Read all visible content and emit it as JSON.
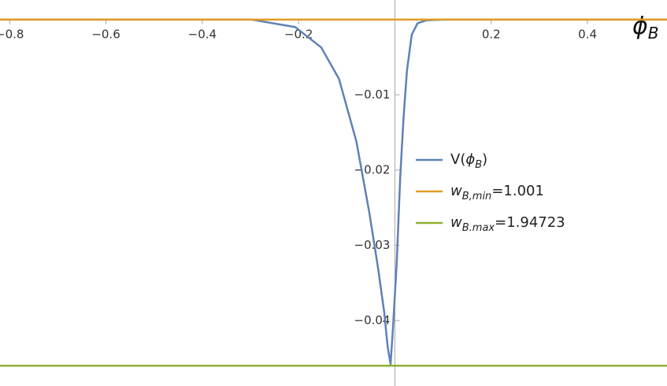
{
  "chart_data": {
    "type": "line",
    "x_label": [
      "ϕ",
      "B"
    ],
    "xlim": [
      -0.82,
      0.565
    ],
    "ylim": [
      -0.0487,
      0.0026
    ],
    "xticks": [
      {
        "value": -0.8,
        "label": "−0.8"
      },
      {
        "value": -0.6,
        "label": "−0.6"
      },
      {
        "value": -0.4,
        "label": "−0.4"
      },
      {
        "value": -0.2,
        "label": "−0.2"
      },
      0.2,
      0.4
    ],
    "yticks": [
      {
        "value": -0.01,
        "label": "−0.01"
      },
      {
        "value": -0.02,
        "label": "−0.02"
      },
      {
        "value": -0.03,
        "label": "−0.03"
      },
      {
        "value": -0.04,
        "label": "−0.04"
      }
    ],
    "series": [
      {
        "name": [
          "V(",
          "ϕ",
          "B",
          ")"
        ],
        "color": "#5e81b5",
        "x": [
          -0.82,
          -0.298,
          -0.207,
          -0.153,
          -0.116,
          -0.08,
          -0.053,
          -0.035,
          -0.022,
          -0.015,
          -0.009,
          -0.004,
          0.004,
          0.011,
          0.018,
          0.025,
          0.035,
          0.047,
          0.065,
          0.102,
          0.565
        ],
        "values": [
          0,
          0,
          -0.001,
          -0.0037,
          -0.0079,
          -0.0162,
          -0.0257,
          -0.033,
          -0.039,
          -0.0435,
          -0.0458,
          -0.041,
          -0.032,
          -0.021,
          -0.013,
          -0.0068,
          -0.002,
          -0.0005,
          -0.0001,
          0,
          0
        ]
      },
      {
        "name": [
          "w",
          "B,min",
          "=1.001"
        ],
        "color": "#e19c24",
        "x": [
          -0.82,
          0.565
        ],
        "values": [
          0,
          0
        ]
      },
      {
        "name": [
          "w",
          "B.max",
          "=1.94723"
        ],
        "color": "#8fb032",
        "x": [
          -0.82,
          0.565
        ],
        "values": [
          -0.046,
          -0.046
        ]
      }
    ]
  }
}
